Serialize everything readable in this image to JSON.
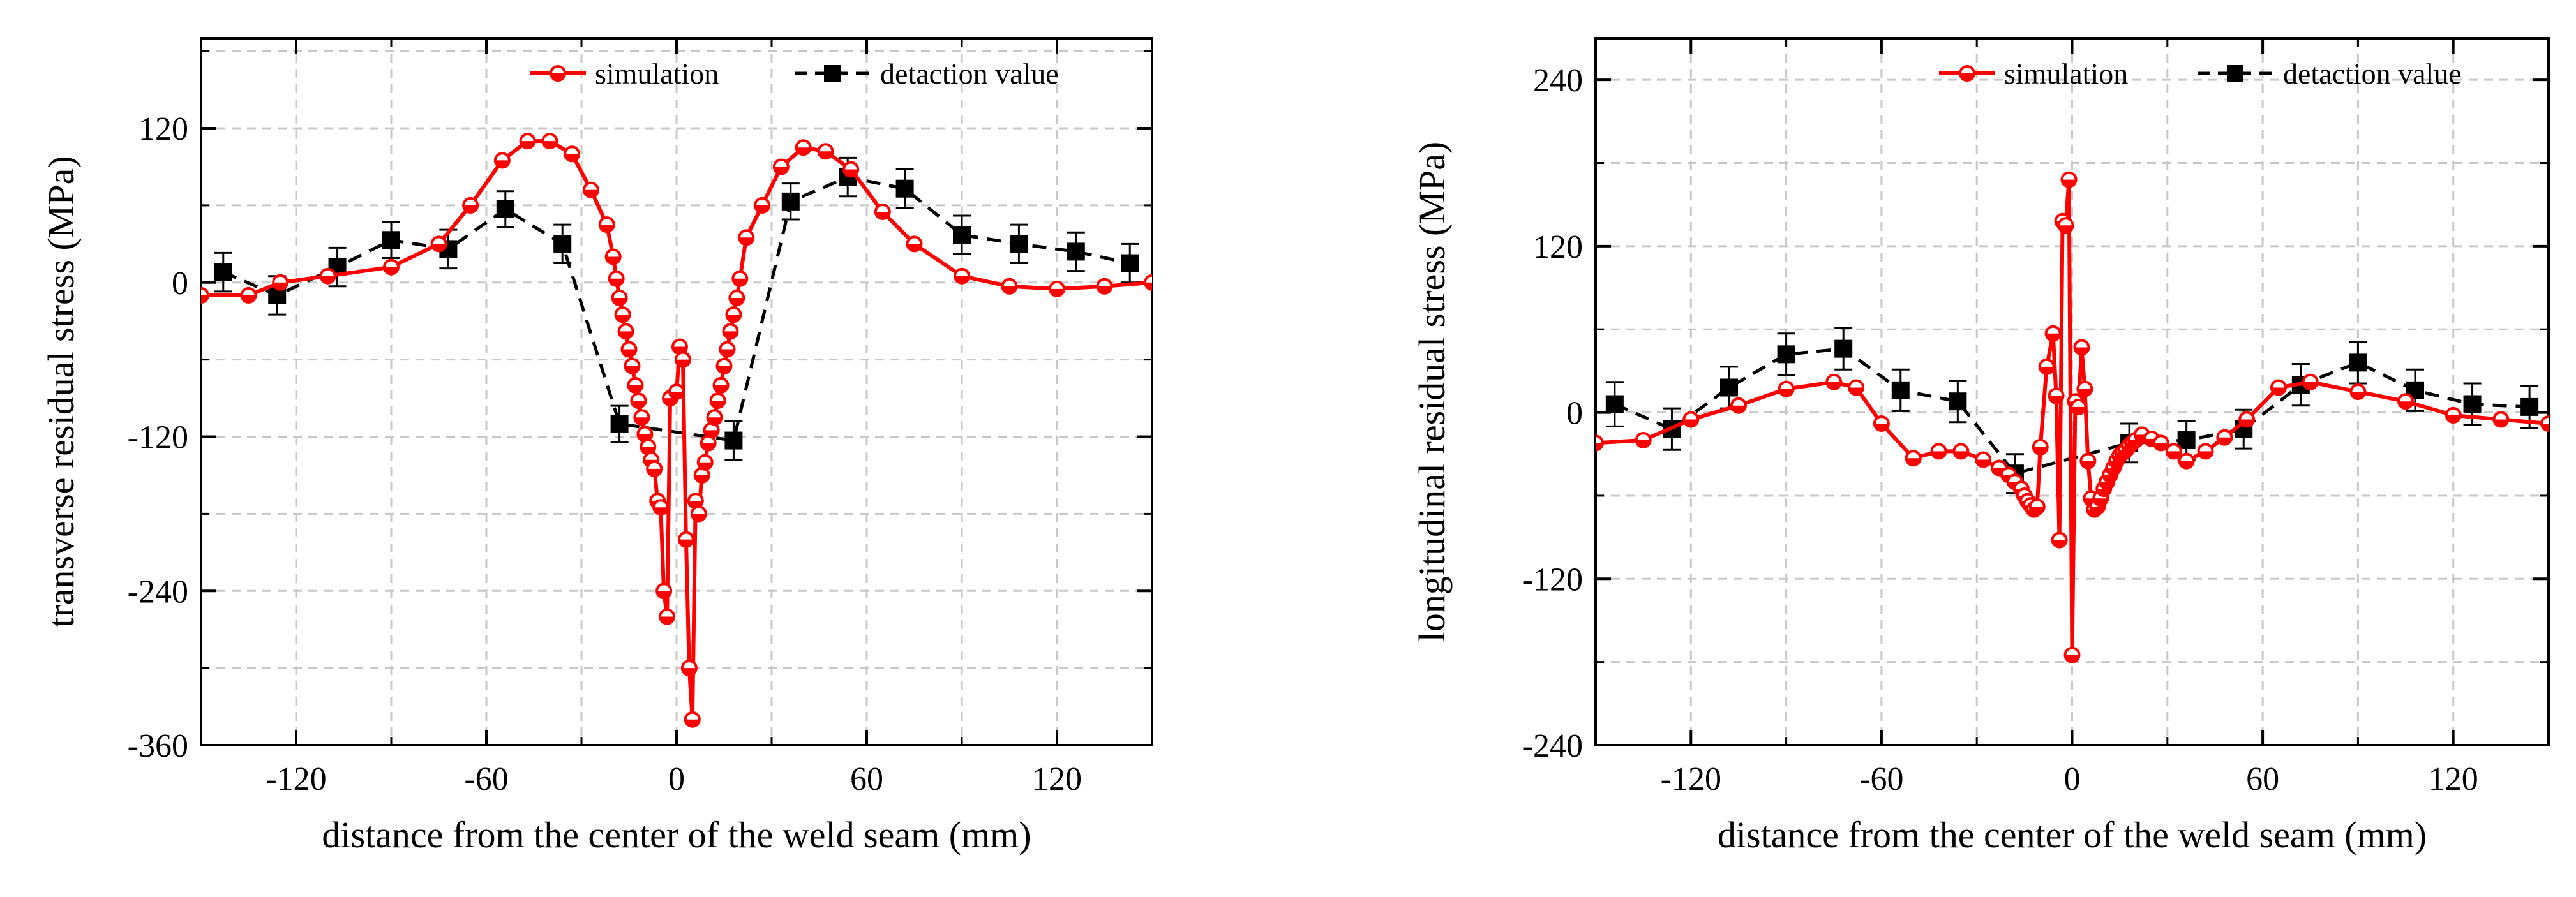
{
  "chart_data": [
    {
      "type": "line",
      "xlabel": "distance from the center of the weld seam (mm)",
      "ylabel": "transverse residual stress (MPa)",
      "xlim": [
        -150,
        150
      ],
      "ylim": [
        -360,
        190
      ],
      "xticks": [
        -120,
        -60,
        0,
        60,
        120
      ],
      "yticks": [
        -360,
        -240,
        -120,
        0,
        120
      ],
      "grid": true,
      "legend_position": "top-right",
      "series": [
        {
          "name": "simulation",
          "style": "solid-line-half-filled-circle",
          "color": "#ff0000",
          "x": [
            -150,
            -135,
            -125,
            -110,
            -90,
            -75,
            -65,
            -55,
            -47,
            -40,
            -33,
            -27,
            -22,
            -20,
            -19,
            -18,
            -17,
            -16,
            -15,
            -14,
            -13,
            -12,
            -11,
            -10,
            -9,
            -8,
            -7,
            -6,
            -5,
            -4,
            -3,
            -2,
            0,
            1,
            2,
            3,
            4,
            5,
            6,
            7,
            8,
            9,
            10,
            11,
            12,
            13,
            14,
            15,
            16,
            17,
            18,
            19,
            20,
            22,
            27,
            33,
            40,
            47,
            55,
            65,
            75,
            90,
            105,
            120,
            135,
            150
          ],
          "y": [
            -10,
            -10,
            0,
            5,
            12,
            30,
            60,
            95,
            110,
            110,
            100,
            72,
            45,
            20,
            3,
            -12,
            -25,
            -38,
            -52,
            -65,
            -80,
            -92,
            -105,
            -118,
            -128,
            -138,
            -145,
            -170,
            -175,
            -240,
            -260,
            -90,
            -85,
            -50,
            -60,
            -200,
            -300,
            -340,
            -170,
            -180,
            -150,
            -140,
            -125,
            -115,
            -105,
            -92,
            -80,
            -65,
            -52,
            -38,
            -25,
            -12,
            3,
            35,
            60,
            90,
            105,
            102,
            88,
            55,
            30,
            5,
            -3,
            -5,
            -3,
            0
          ]
        },
        {
          "name": "detaction value",
          "style": "dashed-line-square",
          "color": "#000000",
          "x": [
            -143,
            -126,
            -107,
            -90,
            -72,
            -54,
            -36,
            -18,
            18,
            36,
            54,
            72,
            90,
            108,
            126,
            143
          ],
          "y": [
            8,
            -10,
            12,
            33,
            26,
            57,
            30,
            -110,
            -123,
            63,
            82,
            73,
            37,
            30,
            24,
            15
          ],
          "error": [
            15,
            15,
            15,
            14,
            15,
            14,
            15,
            14,
            15,
            14,
            15,
            15,
            15,
            15,
            15,
            15
          ]
        }
      ]
    },
    {
      "type": "line",
      "xlabel": "distance from the center of the weld seam (mm)",
      "ylabel": "longitudinal residual stress (MPa)",
      "xlim": [
        -150,
        150
      ],
      "ylim": [
        -240,
        270
      ],
      "xticks": [
        -120,
        -60,
        0,
        60,
        120
      ],
      "yticks": [
        -240,
        -120,
        0,
        120,
        240
      ],
      "grid": true,
      "legend_position": "top-right",
      "series": [
        {
          "name": "simulation",
          "style": "solid-line-half-filled-circle",
          "color": "#ff0000",
          "x": [
            -150,
            -135,
            -120,
            -105,
            -90,
            -75,
            -68,
            -60,
            -50,
            -42,
            -35,
            -28,
            -23,
            -20,
            -18,
            -16,
            -15,
            -14,
            -13,
            -12,
            -11,
            -10,
            -9,
            -8,
            -7,
            -6,
            -5,
            -4,
            -3,
            -2,
            -1,
            0,
            1,
            2,
            3,
            4,
            5,
            6,
            7,
            8,
            9,
            10,
            11,
            12,
            13,
            14,
            15,
            16,
            17,
            18,
            19,
            20,
            22,
            25,
            30,
            38,
            45,
            52,
            62,
            75,
            90,
            105,
            120,
            135,
            150
          ],
          "y": [
            -22,
            -20,
            -5,
            5,
            17,
            22,
            18,
            -8,
            -33,
            -28,
            -28,
            -34,
            -40,
            -45,
            -50,
            -55,
            -60,
            -64,
            -67,
            -70,
            -68,
            -25,
            33,
            57,
            12,
            -92,
            138,
            135,
            168,
            -175,
            8,
            4,
            47,
            17,
            -35,
            -62,
            -70,
            -68,
            -62,
            -55,
            -50,
            -45,
            -40,
            -35,
            -31,
            -29,
            -27,
            -24,
            -22,
            -20,
            -16,
            -19,
            -22,
            -28,
            -35,
            -28,
            -18,
            -5,
            18,
            22,
            15,
            8,
            -2,
            -5,
            -8
          ],
          "x_override": [
            -150,
            -135,
            -120,
            -105,
            -90,
            -75,
            -68,
            -60,
            -50,
            -42,
            -35,
            -28,
            -23,
            -20,
            -18,
            -16,
            -15,
            -14,
            -13,
            -12,
            -11,
            -10,
            -8,
            -6,
            -5,
            -4,
            -3,
            -2,
            -1,
            0,
            1,
            2,
            3,
            4,
            5,
            6,
            7,
            8,
            9,
            10,
            11,
            12,
            13,
            14,
            15,
            16,
            17,
            18,
            19,
            20,
            22,
            25,
            28,
            32,
            36,
            42,
            48,
            55,
            65,
            75,
            90,
            105,
            120,
            135,
            150
          ]
        },
        {
          "name": "detaction value",
          "style": "dashed-line-square",
          "color": "#000000",
          "x": [
            -144,
            -126,
            -108,
            -90,
            -72,
            -54,
            -36,
            -18,
            18,
            36,
            54,
            72,
            90,
            108,
            126,
            144
          ],
          "y": [
            6,
            -12,
            18,
            42,
            46,
            16,
            8,
            -44,
            -22,
            -20,
            -12,
            20,
            36,
            16,
            6,
            4
          ],
          "error": [
            16,
            15,
            15,
            15,
            15,
            15,
            15,
            14,
            14,
            14,
            14,
            15,
            15,
            15,
            15,
            15
          ]
        }
      ]
    }
  ]
}
